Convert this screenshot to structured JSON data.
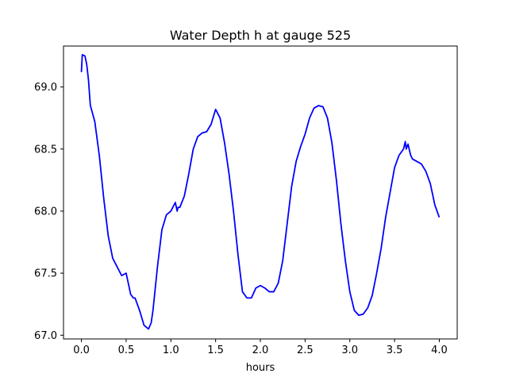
{
  "chart_data": {
    "type": "line",
    "title": "Water Depth h at gauge 525",
    "xlabel": "hours",
    "ylabel": "",
    "xlim": [
      -0.2,
      4.2
    ],
    "ylim": [
      66.97,
      69.33
    ],
    "xticks": [
      0.0,
      0.5,
      1.0,
      1.5,
      2.0,
      2.5,
      3.0,
      3.5,
      4.0
    ],
    "xtick_labels": [
      "0.0",
      "0.5",
      "1.0",
      "1.5",
      "2.0",
      "2.5",
      "3.0",
      "3.5",
      "4.0"
    ],
    "yticks": [
      67.0,
      67.5,
      68.0,
      68.5,
      69.0
    ],
    "ytick_labels": [
      "67.0",
      "67.5",
      "68.0",
      "68.5",
      "69.0"
    ],
    "grid": false,
    "series": [
      {
        "color": "#0000ff",
        "x": [
          0.0,
          0.01,
          0.04,
          0.06,
          0.08,
          0.1,
          0.12,
          0.15,
          0.2,
          0.25,
          0.3,
          0.35,
          0.4,
          0.45,
          0.5,
          0.53,
          0.55,
          0.58,
          0.6,
          0.65,
          0.7,
          0.75,
          0.78,
          0.8,
          0.85,
          0.9,
          0.95,
          1.0,
          1.05,
          1.07,
          1.08,
          1.1,
          1.15,
          1.2,
          1.25,
          1.3,
          1.35,
          1.4,
          1.45,
          1.5,
          1.55,
          1.6,
          1.65,
          1.7,
          1.75,
          1.8,
          1.85,
          1.9,
          1.95,
          2.0,
          2.05,
          2.1,
          2.15,
          2.2,
          2.25,
          2.3,
          2.35,
          2.4,
          2.45,
          2.5,
          2.55,
          2.6,
          2.65,
          2.7,
          2.75,
          2.8,
          2.85,
          2.9,
          2.95,
          3.0,
          3.05,
          3.1,
          3.15,
          3.2,
          3.25,
          3.3,
          3.35,
          3.4,
          3.45,
          3.5,
          3.55,
          3.6,
          3.62,
          3.63,
          3.65,
          3.68,
          3.7,
          3.75,
          3.8,
          3.85,
          3.9,
          3.95,
          4.0
        ],
        "y": [
          69.12,
          69.26,
          69.25,
          69.18,
          69.05,
          68.85,
          68.8,
          68.72,
          68.45,
          68.1,
          67.8,
          67.62,
          67.55,
          67.48,
          67.5,
          67.4,
          67.33,
          67.3,
          67.3,
          67.2,
          67.08,
          67.05,
          67.1,
          67.2,
          67.55,
          67.85,
          67.97,
          68.0,
          68.07,
          68.0,
          68.03,
          68.03,
          68.12,
          68.3,
          68.5,
          68.6,
          68.63,
          68.64,
          68.7,
          68.82,
          68.75,
          68.55,
          68.3,
          68.0,
          67.65,
          67.35,
          67.3,
          67.3,
          67.38,
          67.4,
          67.38,
          67.35,
          67.35,
          67.42,
          67.6,
          67.9,
          68.2,
          68.4,
          68.52,
          68.62,
          68.75,
          68.83,
          68.85,
          68.84,
          68.75,
          68.55,
          68.25,
          67.9,
          67.6,
          67.35,
          67.2,
          67.16,
          67.17,
          67.22,
          67.32,
          67.5,
          67.7,
          67.95,
          68.15,
          68.35,
          68.45,
          68.5,
          68.56,
          68.5,
          68.54,
          68.45,
          68.42,
          68.4,
          68.38,
          68.32,
          68.22,
          68.05,
          67.95
        ]
      }
    ]
  }
}
